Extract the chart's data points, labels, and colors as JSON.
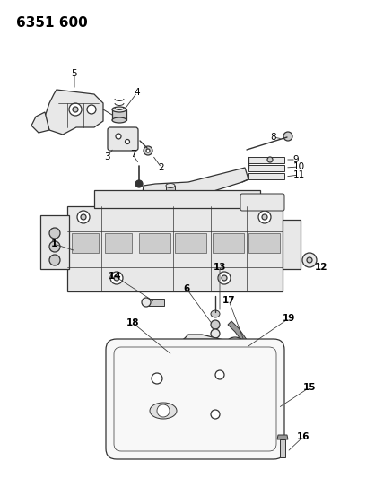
{
  "title": "6351 600",
  "background_color": "#ffffff",
  "text_color": "#000000",
  "fig_width": 4.08,
  "fig_height": 5.33,
  "dpi": 100,
  "line_color": "#333333",
  "label_fontsize": 7.5,
  "title_fontsize": 11
}
